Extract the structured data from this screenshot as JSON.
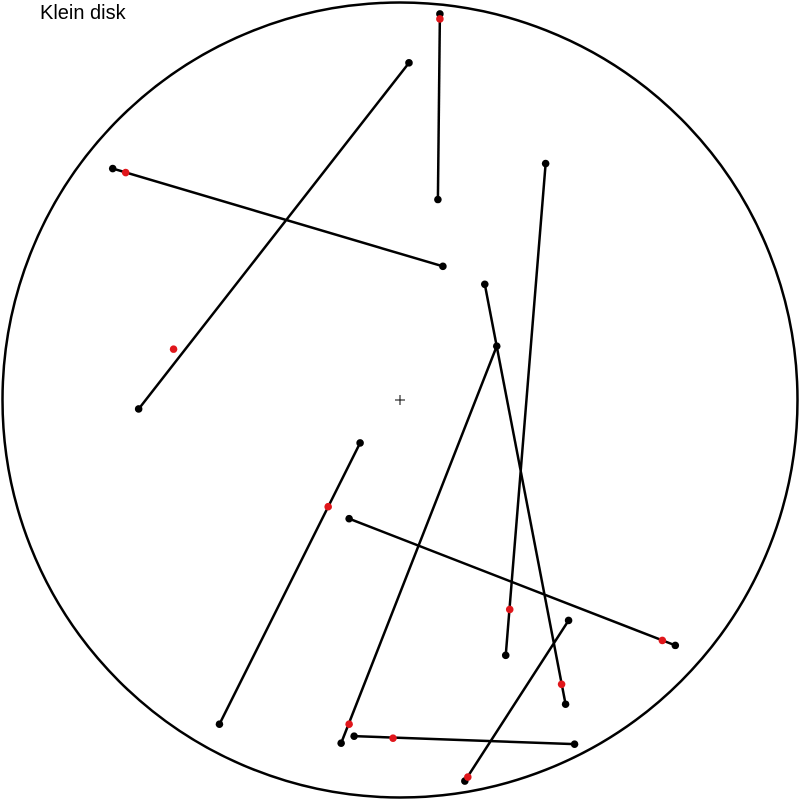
{
  "title": "Klein disk",
  "colors": {
    "stroke": "#000000",
    "endpoint": "#000000",
    "marker": "#e0161b",
    "background": "#ffffff"
  },
  "disk": {
    "center": [
      0,
      0
    ],
    "radius": 1,
    "center_marker": "plus"
  },
  "segments": [
    {
      "p1": [
        0.1,
        0.9675
      ],
      "p2": [
        0.095,
        0.5025
      ],
      "marker": [
        0.1,
        0.955
      ]
    },
    {
      "p1": [
        0.0225,
        0.845
      ],
      "p2": [
        -0.655,
        -0.0225
      ],
      "marker": [
        -0.5675,
        0.1275
      ]
    },
    {
      "p1": [
        -0.72,
        0.58
      ],
      "p2": [
        0.1075,
        0.335
      ],
      "marker": [
        -0.6875,
        0.57
      ]
    },
    {
      "p1": [
        0.365,
        0.5925
      ],
      "p2": [
        0.265,
        -0.64
      ],
      "marker": [
        0.275,
        -0.525
      ]
    },
    {
      "p1": [
        0.2125,
        0.29
      ],
      "p2": [
        0.415,
        -0.7625
      ],
      "marker": [
        0.405,
        -0.7125
      ]
    },
    {
      "p1": [
        0.2425,
        0.135
      ],
      "p2": [
        -0.1475,
        -0.86
      ],
      "marker": [
        -0.1275,
        -0.8125
      ]
    },
    {
      "p1": [
        -0.1,
        -0.1075
      ],
      "p2": [
        -0.4525,
        -0.8125
      ],
      "marker": [
        -0.18,
        -0.2675
      ]
    },
    {
      "p1": [
        -0.1275,
        -0.2975
      ],
      "p2": [
        0.69,
        -0.615
      ],
      "marker": [
        0.6575,
        -0.6025
      ]
    },
    {
      "p1": [
        0.4225,
        -0.5525
      ],
      "p2": [
        0.1625,
        -0.955
      ],
      "marker": [
        0.17,
        -0.945
      ]
    },
    {
      "p1": [
        -0.115,
        -0.8425
      ],
      "p2": [
        0.4375,
        -0.8625
      ],
      "marker": [
        -0.0175,
        -0.8475
      ]
    }
  ]
}
